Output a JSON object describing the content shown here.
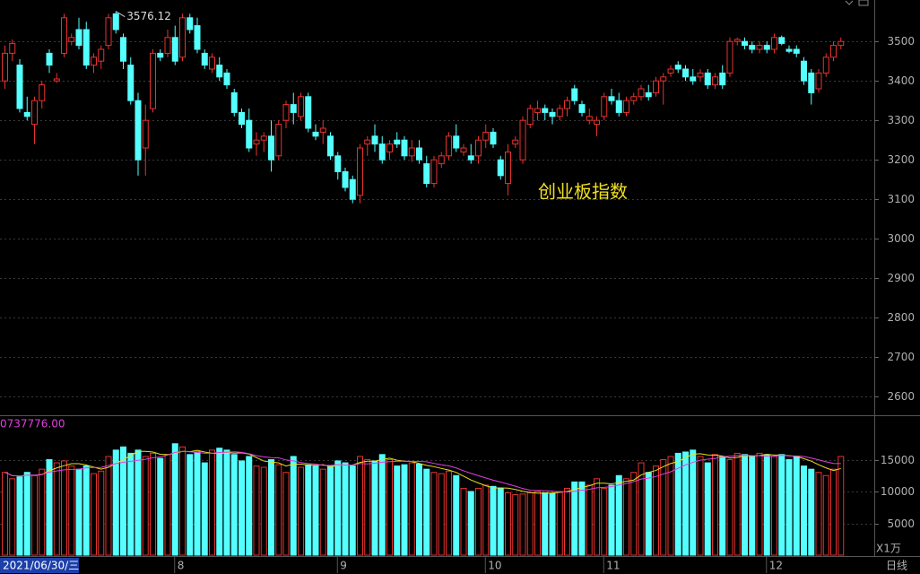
{
  "chart_data": {
    "type": "candlestick",
    "title": "创业板指数",
    "start_label": "2021/06/30/三",
    "period_label": "日线",
    "volume_unit_label": "X1万",
    "volume_max_label": "0737776.00",
    "up_color": "#e8322e",
    "down_color": "#54ffff",
    "grid": true,
    "ylim": [
      2555,
      3605
    ],
    "yticks": [
      2600,
      2700,
      2800,
      2900,
      3000,
      3100,
      3200,
      3300,
      3400,
      3500
    ],
    "volume_ylim": [
      0,
      21550
    ],
    "volume_yticks": [
      5000,
      10000,
      15000
    ],
    "xticks": [
      {
        "value": 23,
        "label": "8"
      },
      {
        "value": 45,
        "label": "9"
      },
      {
        "value": 65,
        "label": "10"
      },
      {
        "value": 81,
        "label": "11"
      },
      {
        "value": 103,
        "label": "12"
      }
    ],
    "open": [
      3400,
      3470,
      3440,
      3320,
      3290,
      3350,
      3470,
      3400,
      3470,
      3500,
      3530,
      3530,
      3440,
      3450,
      3490,
      3570,
      3510,
      3440,
      3350,
      3230,
      3330,
      3470,
      3470,
      3510,
      3460,
      3560,
      3540,
      3470,
      3430,
      3440,
      3420,
      3370,
      3320,
      3300,
      3240,
      3250,
      3260,
      3210,
      3300,
      3340,
      3310,
      3360,
      3270,
      3270,
      3260,
      3210,
      3170,
      3150,
      3110,
      3240,
      3260,
      3240,
      3220,
      3250,
      3250,
      3210,
      3230,
      3190,
      3140,
      3190,
      3210,
      3260,
      3220,
      3210,
      3210,
      3250,
      3270,
      3200,
      3140,
      3240,
      3200,
      3290,
      3320,
      3330,
      3320,
      3310,
      3330,
      3380,
      3340,
      3300,
      3290,
      3310,
      3360,
      3350,
      3320,
      3350,
      3360,
      3370,
      3370,
      3400,
      3420,
      3440,
      3430,
      3410,
      3410,
      3420,
      3390,
      3420,
      3420,
      3500,
      3500,
      3490,
      3480,
      3490,
      3480,
      3510,
      3480,
      3480,
      3450,
      3420,
      3380,
      3420,
      3460,
      3490
    ],
    "high": [
      3490,
      3505,
      3455,
      3360,
      3360,
      3400,
      3480,
      3420,
      3570,
      3520,
      3560,
      3550,
      3470,
      3490,
      3570,
      3576.12,
      3520,
      3460,
      3370,
      3340,
      3480,
      3480,
      3530,
      3540,
      3570,
      3570,
      3560,
      3480,
      3470,
      3460,
      3430,
      3380,
      3330,
      3330,
      3270,
      3270,
      3300,
      3300,
      3350,
      3370,
      3370,
      3370,
      3290,
      3300,
      3270,
      3220,
      3180,
      3160,
      3240,
      3260,
      3290,
      3260,
      3250,
      3270,
      3260,
      3250,
      3250,
      3210,
      3210,
      3220,
      3270,
      3290,
      3240,
      3240,
      3260,
      3290,
      3280,
      3210,
      3240,
      3260,
      3310,
      3340,
      3350,
      3340,
      3330,
      3340,
      3360,
      3390,
      3350,
      3330,
      3310,
      3370,
      3380,
      3370,
      3360,
      3370,
      3390,
      3390,
      3410,
      3420,
      3440,
      3450,
      3440,
      3430,
      3430,
      3430,
      3420,
      3440,
      3510,
      3510,
      3510,
      3500,
      3500,
      3500,
      3520,
      3515,
      3490,
      3490,
      3460,
      3430,
      3430,
      3470,
      3500,
      3510
    ],
    "low": [
      3380,
      3450,
      3320,
      3300,
      3240,
      3330,
      3420,
      3395,
      3460,
      3490,
      3480,
      3430,
      3420,
      3430,
      3480,
      3520,
      3430,
      3340,
      3160,
      3160,
      3320,
      3450,
      3460,
      3440,
      3450,
      3520,
      3470,
      3430,
      3420,
      3400,
      3380,
      3310,
      3280,
      3220,
      3210,
      3220,
      3170,
      3200,
      3280,
      3290,
      3300,
      3270,
      3250,
      3240,
      3200,
      3150,
      3120,
      3090,
      3090,
      3210,
      3220,
      3190,
      3200,
      3230,
      3200,
      3195,
      3190,
      3130,
      3130,
      3180,
      3200,
      3220,
      3210,
      3190,
      3190,
      3230,
      3230,
      3150,
      3110,
      3230,
      3190,
      3280,
      3300,
      3300,
      3290,
      3300,
      3310,
      3340,
      3310,
      3290,
      3260,
      3300,
      3340,
      3310,
      3310,
      3340,
      3350,
      3350,
      3360,
      3340,
      3410,
      3420,
      3400,
      3390,
      3400,
      3380,
      3380,
      3380,
      3410,
      3490,
      3480,
      3470,
      3470,
      3470,
      3470,
      3490,
      3470,
      3460,
      3390,
      3340,
      3370,
      3410,
      3450,
      3480
    ],
    "close": [
      3470,
      3495,
      3330,
      3310,
      3350,
      3390,
      3440,
      3405,
      3560,
      3510,
      3490,
      3440,
      3460,
      3480,
      3560,
      3530,
      3450,
      3350,
      3200,
      3300,
      3470,
      3460,
      3510,
      3450,
      3560,
      3530,
      3480,
      3440,
      3460,
      3410,
      3390,
      3320,
      3290,
      3230,
      3250,
      3260,
      3200,
      3290,
      3340,
      3320,
      3360,
      3280,
      3260,
      3280,
      3210,
      3170,
      3130,
      3100,
      3230,
      3250,
      3240,
      3200,
      3240,
      3240,
      3210,
      3230,
      3200,
      3140,
      3200,
      3210,
      3260,
      3230,
      3230,
      3200,
      3250,
      3270,
      3240,
      3160,
      3220,
      3250,
      3300,
      3330,
      3330,
      3320,
      3310,
      3330,
      3350,
      3350,
      3320,
      3310,
      3300,
      3360,
      3350,
      3320,
      3350,
      3360,
      3380,
      3360,
      3400,
      3410,
      3430,
      3430,
      3410,
      3400,
      3420,
      3390,
      3410,
      3390,
      3500,
      3505,
      3490,
      3480,
      3490,
      3480,
      3510,
      3495,
      3475,
      3470,
      3400,
      3370,
      3420,
      3460,
      3490,
      3500
    ],
    "volume": [
      13000,
      12000,
      12300,
      13000,
      12500,
      13500,
      15000,
      14500,
      14800,
      14000,
      13500,
      14000,
      12800,
      13200,
      15500,
      16500,
      17000,
      16000,
      16500,
      15500,
      16000,
      15200,
      15800,
      17500,
      17000,
      15800,
      16200,
      14500,
      16500,
      16800,
      16500,
      15800,
      14800,
      15500,
      14000,
      13800,
      15000,
      14200,
      13000,
      15500,
      13800,
      14200,
      14000,
      13500,
      14000,
      14800,
      14500,
      14000,
      15500,
      15000,
      14800,
      15800,
      15000,
      14000,
      14200,
      14500,
      14300,
      13500,
      13000,
      12800,
      13200,
      12500,
      10500,
      10000,
      10500,
      11000,
      10800,
      10500,
      9800,
      9500,
      9600,
      9800,
      10000,
      9800,
      9700,
      10000,
      10500,
      11500,
      11500,
      11000,
      12000,
      10500,
      11000,
      12500,
      12000,
      13000,
      14500,
      13000,
      14000,
      15000,
      15500,
      16000,
      16200,
      16500,
      15500,
      14500,
      15800,
      15500,
      15000,
      16000,
      15800,
      15500,
      16000,
      15800,
      15500,
      15800,
      15000,
      15500,
      14000,
      13500,
      13000,
      12500,
      13500,
      15500
    ]
  }
}
